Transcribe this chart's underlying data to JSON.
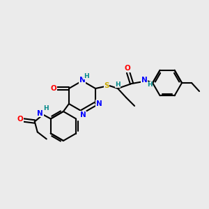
{
  "bg_color": "#ebebeb",
  "atom_colors": {
    "N": "#0000ff",
    "O": "#ff0000",
    "S": "#ccaa00",
    "H": "#008888",
    "C": "#000000"
  },
  "figsize": [
    3.0,
    3.0
  ],
  "dpi": 100
}
